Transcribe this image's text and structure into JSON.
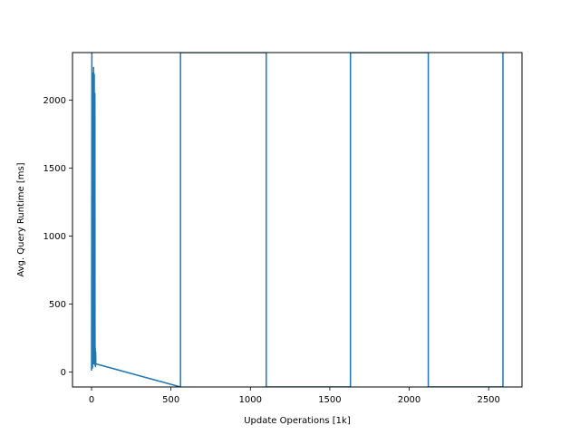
{
  "chart_data": {
    "type": "line",
    "title": "",
    "xlabel": "Update Operations [1k]",
    "ylabel": "Avg. Query Runtime [ms]",
    "xlim": [
      -120,
      2710
    ],
    "ylim": [
      -110,
      2350
    ],
    "xticks": [
      0,
      500,
      1000,
      1500,
      2000,
      2500
    ],
    "yticks": [
      0,
      500,
      1000,
      1500,
      2000
    ],
    "grid": false,
    "legend": "none",
    "series_color": "#1f77b4",
    "series": [
      {
        "points": [
          [
            0,
            10
          ],
          [
            2,
            2350
          ],
          [
            4,
            60
          ],
          [
            6,
            30
          ],
          [
            7,
            900
          ],
          [
            8,
            70
          ],
          [
            9,
            2200
          ],
          [
            10,
            80
          ],
          [
            11,
            1500
          ],
          [
            12,
            90
          ],
          [
            13,
            2240
          ],
          [
            14,
            60
          ],
          [
            15,
            800
          ],
          [
            16,
            100
          ],
          [
            17,
            2190
          ],
          [
            18,
            70
          ],
          [
            19,
            1200
          ],
          [
            20,
            120
          ],
          [
            21,
            2050
          ],
          [
            22,
            50
          ],
          [
            23,
            180
          ],
          [
            24,
            60
          ],
          [
            25,
            40
          ],
          [
            26,
            150
          ],
          [
            27,
            60
          ],
          [
            560,
            -110
          ],
          [
            560,
            2350
          ],
          [
            1100,
            2350
          ],
          [
            1100,
            -110
          ],
          [
            1630,
            -110
          ],
          [
            1630,
            2350
          ],
          [
            2120,
            2350
          ],
          [
            2120,
            -110
          ],
          [
            2590,
            -110
          ],
          [
            2590,
            2350
          ]
        ]
      }
    ]
  }
}
